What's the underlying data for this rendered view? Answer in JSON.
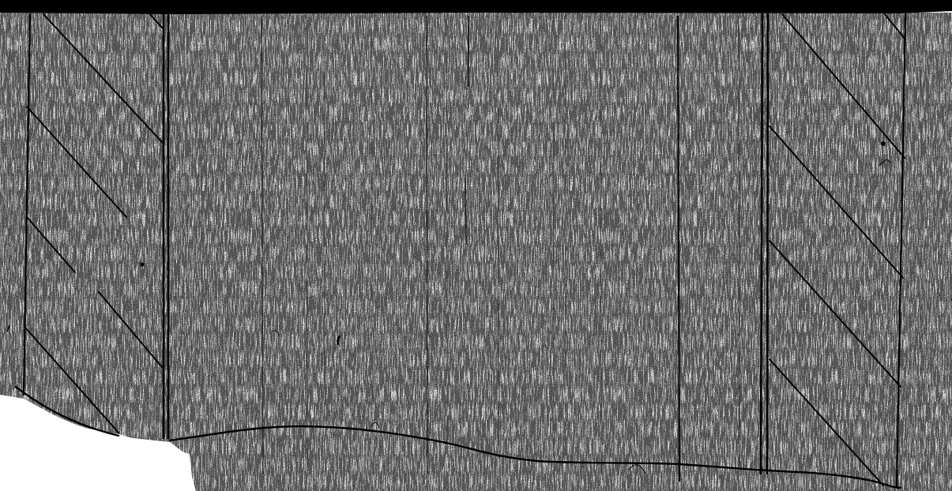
{
  "diagram": {
    "kind": "line-drawing",
    "labels": [],
    "colors": {
      "paper": "#ffffff",
      "ink": "#000000",
      "speckle": "#1a1a1a"
    },
    "parts": {
      "top_band": "solid-black-band",
      "left_wall": "hatched-wall",
      "right_wall": "hatched-wall",
      "bottom_boundary": "wavy-break-line",
      "interior": "vertical-grain-strokes"
    }
  }
}
